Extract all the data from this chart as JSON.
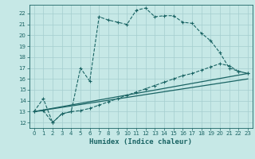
{
  "xlabel": "Humidex (Indice chaleur)",
  "xlim": [
    -0.5,
    23.5
  ],
  "ylim": [
    11.5,
    22.8
  ],
  "xticks": [
    0,
    1,
    2,
    3,
    4,
    5,
    6,
    7,
    8,
    9,
    10,
    11,
    12,
    13,
    14,
    15,
    16,
    17,
    18,
    19,
    20,
    21,
    22,
    23
  ],
  "yticks": [
    12,
    13,
    14,
    15,
    16,
    17,
    18,
    19,
    20,
    21,
    22
  ],
  "background_color": "#c6e8e6",
  "grid_color": "#a4cece",
  "line_color": "#1a6464",
  "line1_x": [
    0,
    1,
    2,
    3,
    4,
    5,
    6,
    7,
    8,
    9,
    10,
    11,
    12,
    13,
    14,
    15,
    16,
    17,
    18,
    19,
    20,
    21,
    22,
    23
  ],
  "line1_y": [
    13.0,
    14.2,
    12.0,
    12.8,
    13.0,
    17.0,
    15.8,
    21.7,
    21.4,
    21.2,
    21.0,
    22.3,
    22.5,
    21.7,
    21.8,
    21.8,
    21.2,
    21.1,
    20.2,
    19.5,
    18.4,
    17.0,
    16.7,
    16.5
  ],
  "line2_x": [
    0,
    1,
    2,
    3,
    4,
    5,
    6,
    7,
    8,
    9,
    10,
    11,
    12,
    13,
    14,
    15,
    16,
    17,
    18,
    19,
    20,
    21,
    22,
    23
  ],
  "line2_y": [
    13.0,
    13.1,
    12.0,
    12.8,
    13.0,
    13.1,
    13.3,
    13.6,
    13.9,
    14.2,
    14.5,
    14.8,
    15.1,
    15.4,
    15.7,
    16.0,
    16.3,
    16.5,
    16.8,
    17.1,
    17.4,
    17.2,
    16.7,
    16.5
  ],
  "line3_x": [
    0,
    23
  ],
  "line3_y": [
    13.0,
    16.5
  ],
  "line4_x": [
    0,
    23
  ],
  "line4_y": [
    13.0,
    16.0
  ]
}
